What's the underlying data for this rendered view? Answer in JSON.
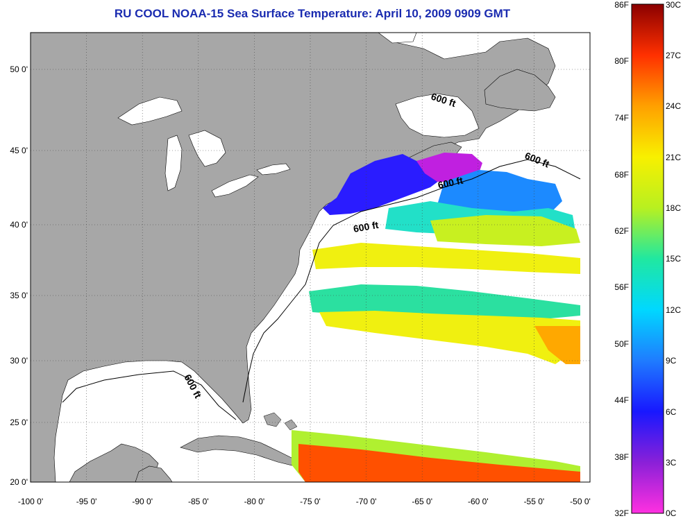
{
  "title": "RU COOL  NOAA-15  Sea Surface Temperature:  April 10, 2009 0909 GMT",
  "map": {
    "lon_range": [
      -100,
      -50
    ],
    "lat_range": [
      20,
      52
    ],
    "lon_ticks": [
      "-100 0'",
      "-95 0'",
      "-90 0'",
      "-85 0'",
      "-80 0'",
      "-75 0'",
      "-70 0'",
      "-65 0'",
      "-60 0'",
      "-55 0'",
      "-50 0'"
    ],
    "lat_ticks": [
      "20 0'",
      "25 0'",
      "30 0'",
      "35 0'",
      "40 0'",
      "45 0'",
      "50 0'"
    ],
    "isobath_labels": [
      "600 ft",
      "600 ft",
      "600 ft",
      "600 ft",
      "600 ft"
    ],
    "colors": {
      "land": "#a7a7a7",
      "water": "#ffffff"
    }
  },
  "colorbar": {
    "fahrenheit_labels": [
      "86F",
      "80F",
      "74F",
      "68F",
      "62F",
      "56F",
      "50F",
      "44F",
      "38F",
      "32F"
    ],
    "celsius_labels": [
      "30C",
      "27C",
      "24C",
      "21C",
      "18C",
      "15C",
      "12C",
      "9C",
      "6C",
      "3C",
      "0C"
    ],
    "stops": [
      "#ff30e0",
      "#8a20d8",
      "#1818ff",
      "#1f7cff",
      "#00d8ff",
      "#20e8a0",
      "#b8f020",
      "#f8f000",
      "#ffa000",
      "#ff3000",
      "#8a0000"
    ]
  }
}
